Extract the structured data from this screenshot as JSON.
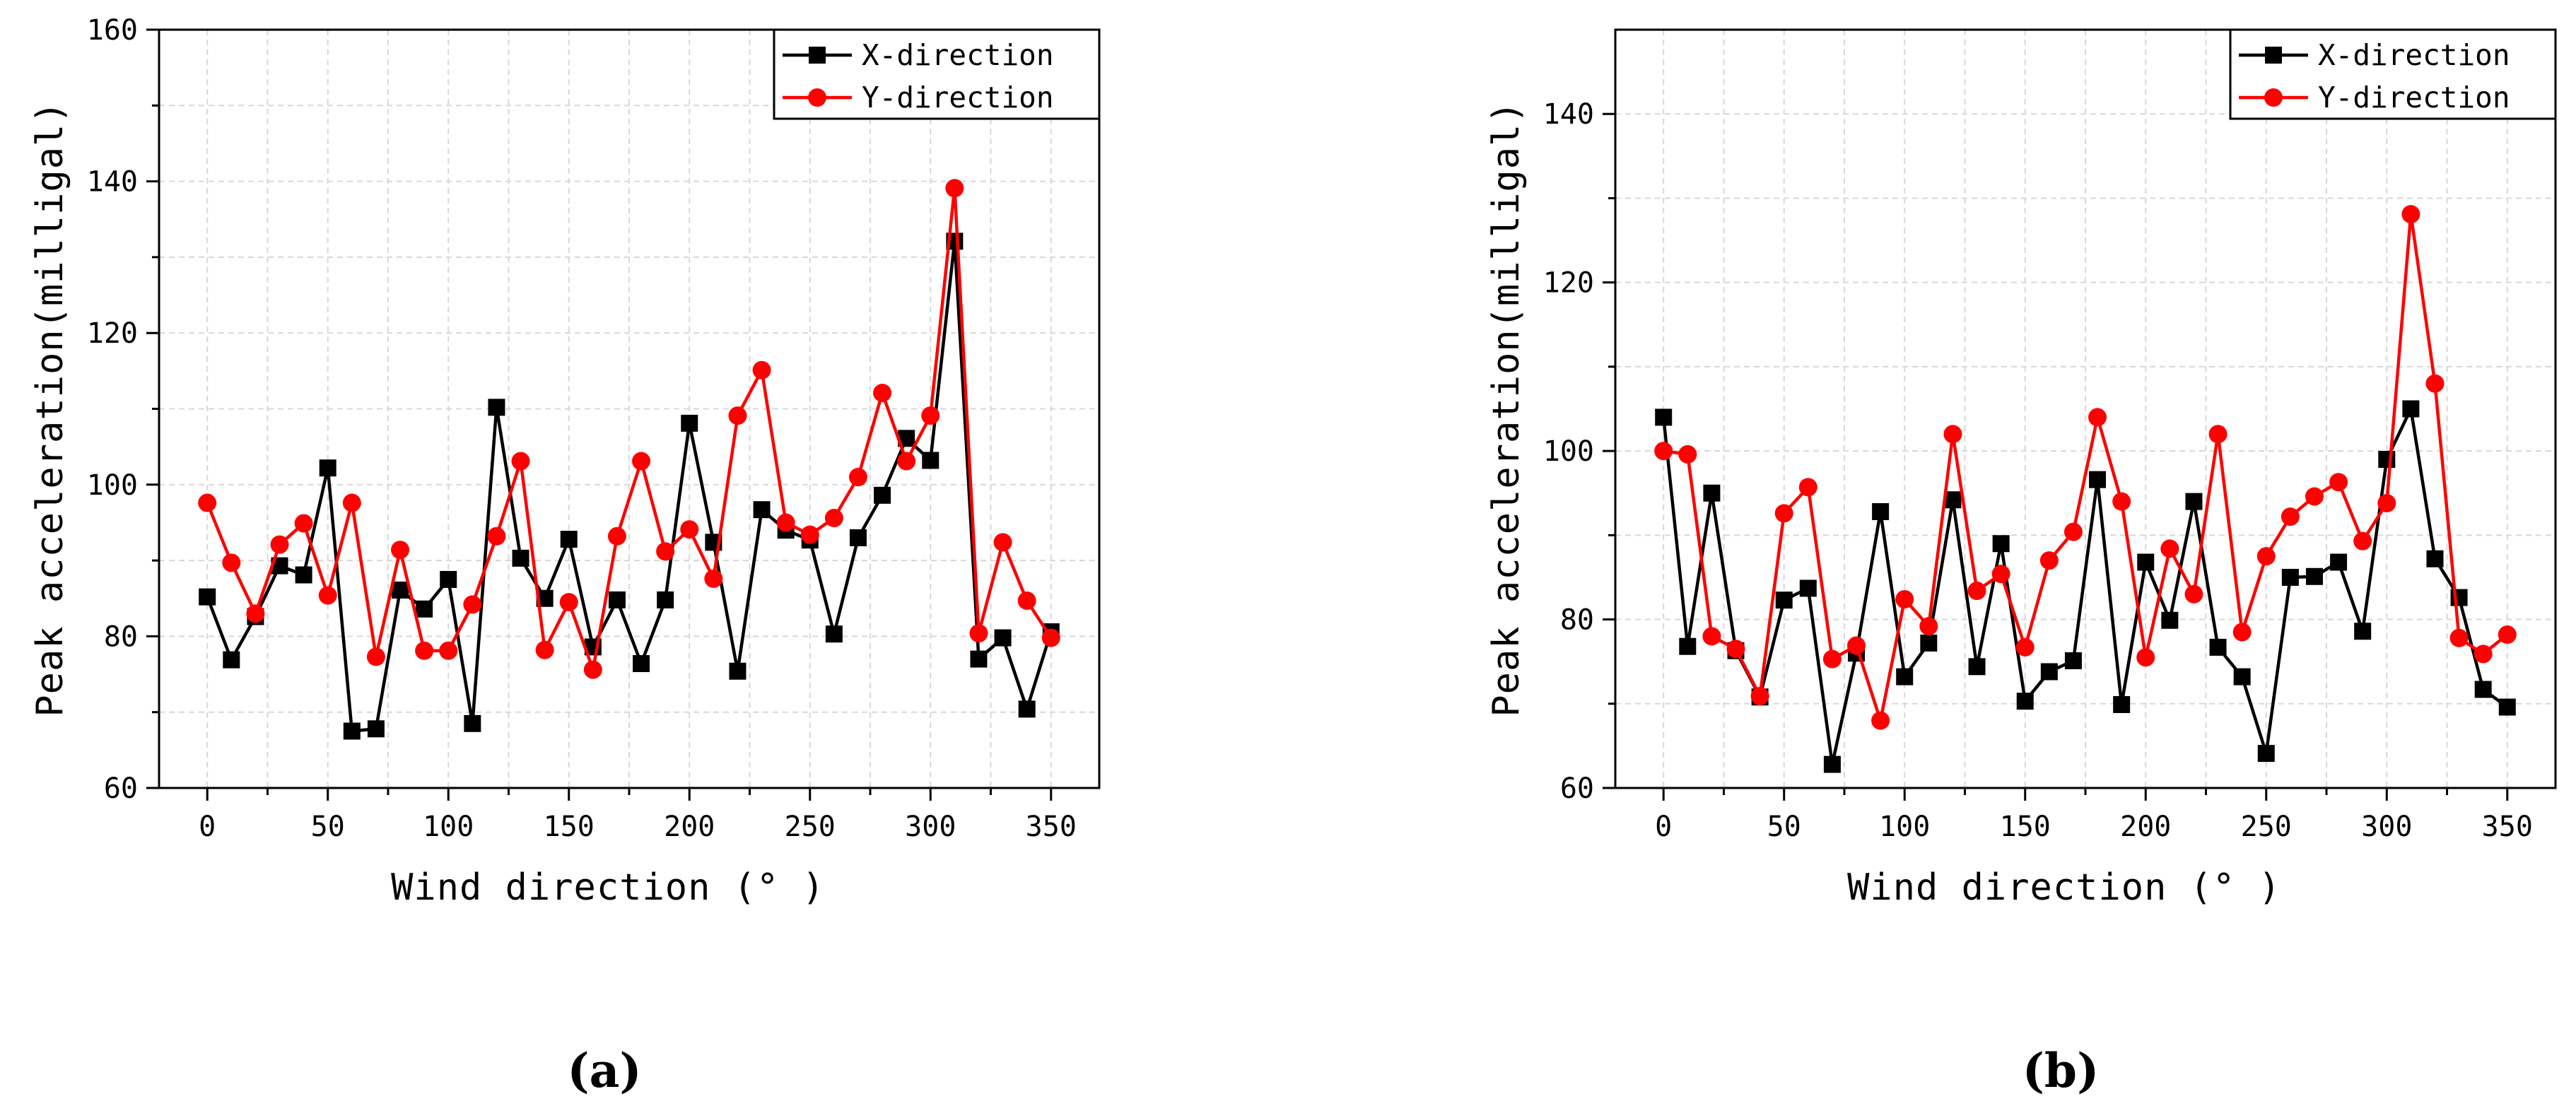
{
  "chart_data": [
    {
      "type": "line",
      "panel_label": "(a)",
      "panel_letter": "a",
      "xlabel": "Wind direction (° )",
      "ylabel": "Peak acceleration(milligal)",
      "xlim": [
        -20,
        370
      ],
      "ylim": [
        60,
        160
      ],
      "xticks": [
        0,
        50,
        100,
        150,
        200,
        250,
        300,
        350
      ],
      "yticks": [
        60,
        80,
        100,
        120,
        140,
        160
      ],
      "grid": true,
      "legend_position": "top-right",
      "x": [
        0,
        10,
        20,
        30,
        40,
        50,
        60,
        70,
        80,
        90,
        100,
        110,
        120,
        130,
        140,
        150,
        160,
        170,
        180,
        190,
        200,
        210,
        220,
        230,
        240,
        250,
        260,
        270,
        280,
        290,
        300,
        310,
        320,
        330,
        340,
        350
      ],
      "series": [
        {
          "name": "X-direction",
          "color": "#000000",
          "marker": "square",
          "values": [
            85.2,
            76.9,
            82.6,
            89.3,
            88.1,
            102.2,
            67.5,
            67.8,
            86.1,
            83.6,
            87.5,
            68.5,
            110.2,
            90.3,
            85.0,
            92.8,
            78.6,
            84.8,
            76.4,
            84.8,
            108.1,
            92.4,
            75.4,
            96.7,
            94.0,
            92.7,
            80.3,
            93.0,
            98.6,
            106.1,
            103.2,
            132.1,
            77.0,
            79.8,
            70.4,
            80.6
          ]
        },
        {
          "name": "Y-direction",
          "color": "#ff0000",
          "marker": "circle",
          "values": [
            97.6,
            89.7,
            83.0,
            92.1,
            94.9,
            85.4,
            97.6,
            77.3,
            91.4,
            78.1,
            78.1,
            84.2,
            93.2,
            103.1,
            78.2,
            84.5,
            75.6,
            93.2,
            103.1,
            91.2,
            94.1,
            87.6,
            109.1,
            115.1,
            95.0,
            93.4,
            95.6,
            101.0,
            112.1,
            103.1,
            109.1,
            139.1,
            80.4,
            92.4,
            84.7,
            79.8
          ]
        }
      ]
    },
    {
      "type": "line",
      "panel_label": "(b)",
      "panel_letter": "b",
      "xlabel": "Wind direction (° )",
      "ylabel": "Peak acceleration(milligal)",
      "xlim": [
        -20,
        370
      ],
      "ylim": [
        60,
        150
      ],
      "xticks": [
        0,
        50,
        100,
        150,
        200,
        250,
        300,
        350
      ],
      "yticks": [
        60,
        80,
        100,
        120,
        140
      ],
      "grid": true,
      "legend_position": "top-right",
      "x": [
        0,
        10,
        20,
        30,
        40,
        50,
        60,
        70,
        80,
        90,
        100,
        110,
        120,
        130,
        140,
        150,
        160,
        170,
        180,
        190,
        200,
        210,
        220,
        230,
        240,
        250,
        260,
        270,
        280,
        290,
        300,
        310,
        320,
        330,
        340,
        350
      ],
      "series": [
        {
          "name": "X-direction",
          "color": "#000000",
          "marker": "square",
          "values": [
            104.0,
            76.8,
            95.0,
            76.3,
            70.8,
            82.3,
            83.7,
            62.8,
            76.0,
            92.8,
            73.2,
            77.2,
            94.2,
            74.4,
            89.0,
            70.3,
            73.8,
            75.1,
            96.6,
            69.9,
            86.8,
            79.9,
            94.0,
            76.7,
            73.2,
            64.1,
            85.0,
            85.1,
            86.8,
            78.6,
            99.0,
            105.0,
            87.2,
            82.6,
            71.7,
            69.6
          ]
        },
        {
          "name": "Y-direction",
          "color": "#ff0000",
          "marker": "circle",
          "values": [
            100.0,
            99.6,
            78.0,
            76.5,
            70.9,
            92.6,
            95.7,
            75.3,
            76.9,
            68.0,
            82.4,
            79.2,
            102.0,
            83.4,
            85.4,
            76.7,
            87.0,
            90.4,
            104.0,
            94.0,
            75.5,
            88.4,
            83.0,
            102.0,
            78.5,
            87.5,
            92.2,
            94.6,
            96.3,
            89.3,
            93.8,
            128.1,
            108.0,
            77.8,
            75.9,
            78.2
          ]
        }
      ]
    }
  ]
}
